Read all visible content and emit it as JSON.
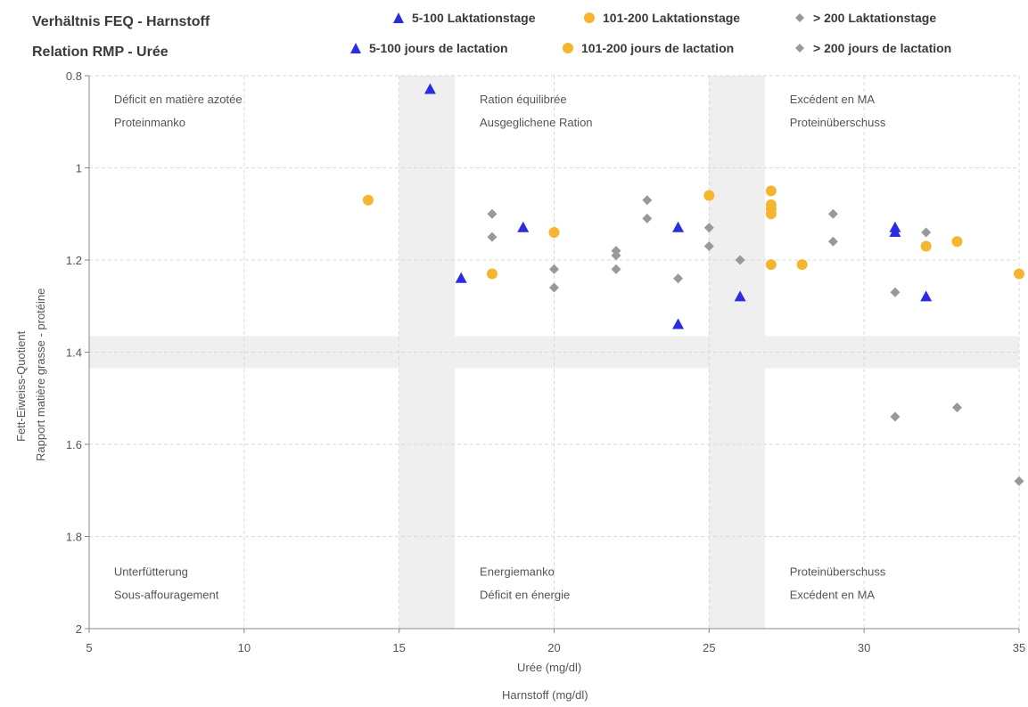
{
  "titles": {
    "de": "Verhältnis FEQ - Harnstoff",
    "fr": "Relation RMP - Urée"
  },
  "legend": [
    {
      "de": "5-100 Laktationstage",
      "fr": "5-100 jours de lactation",
      "shape": "triangle",
      "color": "#2b2be0"
    },
    {
      "de": "101-200 Laktationstage",
      "fr": "101-200 jours de lactation",
      "shape": "circle",
      "color": "#f5b52e"
    },
    {
      "de": "> 200 Laktationstage",
      "fr": "> 200 jours de lactation",
      "shape": "diamond",
      "color": "#999999"
    }
  ],
  "chart_data": {
    "type": "scatter",
    "xlabel": [
      "Urée (mg/dl)",
      "Harnstoff (mg/dl)"
    ],
    "ylabel": [
      "Fett-Eiweiss-Quotient",
      "Rapport matière grasse - protéine"
    ],
    "xlim": [
      5,
      35
    ],
    "ylim": [
      0.8,
      2
    ],
    "y_inverted": true,
    "x_ticks": [
      5,
      10,
      15,
      20,
      25,
      30,
      35
    ],
    "y_ticks": [
      "0.8",
      "1",
      "1.2",
      "1.4",
      "1.6",
      "1.8",
      "2"
    ],
    "grid": true,
    "bands": {
      "x": [
        [
          15,
          16.8
        ],
        [
          25,
          26.8
        ]
      ],
      "y": [
        [
          1.365,
          1.435
        ]
      ]
    },
    "zone_labels": [
      {
        "lines": [
          "Déficit en matière azotée",
          "Proteinmanko"
        ],
        "x": 5.8,
        "y": 0.86
      },
      {
        "lines": [
          "Ration équilibrée",
          "Ausgeglichene Ration"
        ],
        "x": 17.6,
        "y": 0.86
      },
      {
        "lines": [
          "Excédent en MA",
          "Proteinüberschuss"
        ],
        "x": 27.6,
        "y": 0.86
      },
      {
        "lines": [
          "Unterfütterung",
          "Sous-affouragement"
        ],
        "x": 5.8,
        "y": 1.885
      },
      {
        "lines": [
          "Energiemanko",
          "Déficit en énergie"
        ],
        "x": 17.6,
        "y": 1.885
      },
      {
        "lines": [
          "Proteinüberschuss",
          "Excédent en MA"
        ],
        "x": 27.6,
        "y": 1.885
      }
    ],
    "series": [
      {
        "name": "5-100 Laktationstage",
        "marker": "triangle",
        "color": "#2b2be0",
        "points": [
          [
            16,
            0.83
          ],
          [
            17,
            1.24
          ],
          [
            19,
            1.13
          ],
          [
            24,
            1.13
          ],
          [
            24,
            1.34
          ],
          [
            26,
            1.28
          ],
          [
            31,
            1.13
          ],
          [
            31,
            1.14
          ],
          [
            32,
            1.28
          ]
        ]
      },
      {
        "name": "101-200 Laktationstage",
        "marker": "circle",
        "color": "#f5b52e",
        "points": [
          [
            14,
            1.07
          ],
          [
            18,
            1.23
          ],
          [
            20,
            1.14
          ],
          [
            25,
            1.06
          ],
          [
            27,
            1.05
          ],
          [
            27,
            1.08
          ],
          [
            27,
            1.09
          ],
          [
            27,
            1.1
          ],
          [
            27,
            1.21
          ],
          [
            28,
            1.21
          ],
          [
            32,
            1.17
          ],
          [
            33,
            1.16
          ],
          [
            35,
            1.23
          ]
        ]
      },
      {
        "name": "> 200 Laktationstage",
        "marker": "diamond",
        "color": "#999999",
        "points": [
          [
            18,
            1.1
          ],
          [
            18,
            1.15
          ],
          [
            20,
            1.22
          ],
          [
            20,
            1.26
          ],
          [
            22,
            1.18
          ],
          [
            22,
            1.19
          ],
          [
            22,
            1.22
          ],
          [
            23,
            1.07
          ],
          [
            23,
            1.11
          ],
          [
            24,
            1.24
          ],
          [
            25,
            1.13
          ],
          [
            25,
            1.17
          ],
          [
            26,
            1.2
          ],
          [
            29,
            1.1
          ],
          [
            29,
            1.16
          ],
          [
            31,
            1.27
          ],
          [
            31,
            1.54
          ],
          [
            32,
            1.14
          ],
          [
            33,
            1.52
          ],
          [
            35,
            1.68
          ]
        ]
      }
    ]
  }
}
